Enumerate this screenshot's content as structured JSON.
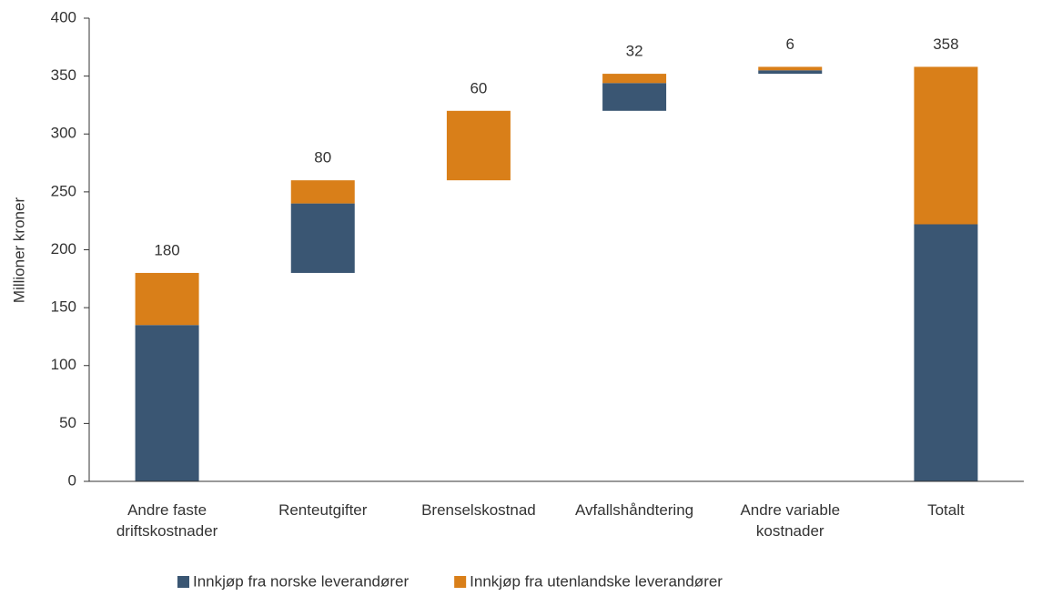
{
  "chart_data": {
    "type": "waterfall",
    "y_label": "Millioner kroner",
    "categories": [
      "Andre faste driftskostnader",
      "Renteutgifter",
      "Brenselskostnad",
      "Avfallshåndtering",
      "Andre variable kostnader",
      "Totalt"
    ],
    "series": [
      {
        "name": "Innkjøp fra norske leverandører",
        "color": "#3a5673",
        "values": [
          135,
          60,
          0,
          24,
          3,
          222
        ]
      },
      {
        "name": "Innkjøp fra utenlandske leverandører",
        "color": "#d97f19",
        "values": [
          45,
          20,
          60,
          8,
          3,
          136
        ]
      }
    ],
    "totals": [
      180,
      80,
      60,
      32,
      6,
      358
    ],
    "ylim": [
      0,
      400
    ],
    "yticks": [
      0,
      50,
      100,
      150,
      200,
      250,
      300,
      350,
      400
    ],
    "legend": "bottom"
  }
}
